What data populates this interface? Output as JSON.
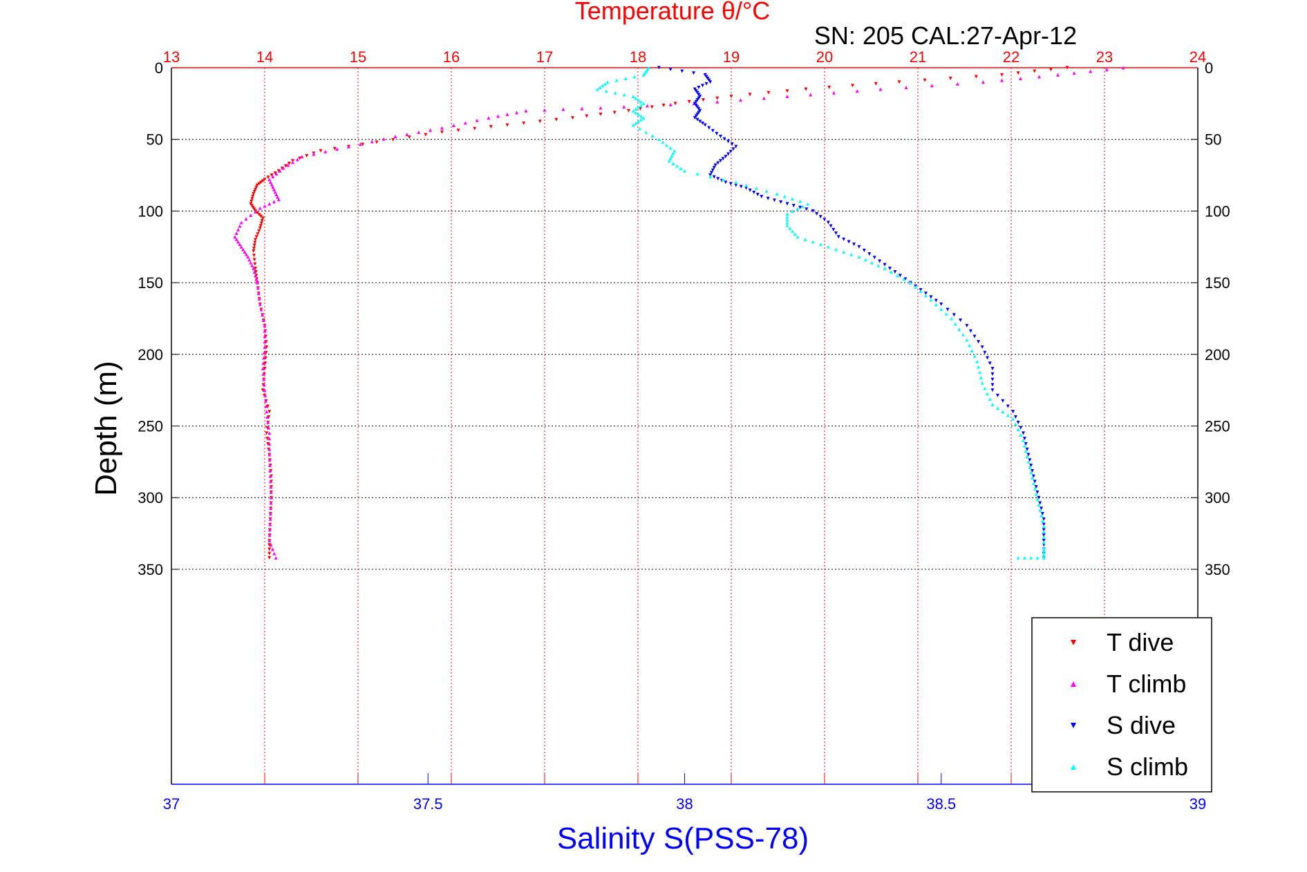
{
  "chart_data": {
    "type": "scatter",
    "title": "Temperature θ/°C",
    "annotation": "SN: 205  CAL:27-Apr-12",
    "ylabel": "Depth (m)",
    "xlabel": "Salinity S(PSS-78)",
    "grid": true,
    "legend_position": "bottom-right",
    "y_axis": {
      "lim": [
        0,
        500
      ],
      "reversed": true,
      "ticks": [
        0,
        50,
        100,
        150,
        200,
        250,
        300,
        350
      ],
      "tick_labels": [
        "0",
        "50",
        "100",
        "150",
        "200",
        "250",
        "300",
        "350"
      ]
    },
    "x_axis_top": {
      "label": "Temperature θ/°C",
      "lim": [
        13,
        24
      ],
      "ticks": [
        13,
        14,
        15,
        16,
        17,
        18,
        19,
        20,
        21,
        22,
        23,
        24
      ],
      "tick_labels": [
        "13",
        "14",
        "15",
        "16",
        "17",
        "18",
        "19",
        "20",
        "21",
        "22",
        "23",
        "24"
      ],
      "color": "#ff0000"
    },
    "x_axis_bottom": {
      "label": "Salinity S(PSS-78)",
      "lim": [
        37,
        39
      ],
      "ticks": [
        37,
        37.5,
        38,
        38.5,
        39
      ],
      "tick_labels": [
        "37",
        "37.5",
        "38",
        "38.5",
        "39"
      ],
      "color": "#0000ff"
    },
    "series": [
      {
        "name": "T dive",
        "axis": "temperature",
        "color": "#ff0000",
        "marker": "triangle-down",
        "points": [
          [
            22.6,
            0
          ],
          [
            21.9,
            5
          ],
          [
            20.8,
            10
          ],
          [
            19.8,
            15
          ],
          [
            19.0,
            20
          ],
          [
            18.4,
            25
          ],
          [
            17.9,
            30
          ],
          [
            17.3,
            35
          ],
          [
            16.6,
            40
          ],
          [
            15.9,
            45
          ],
          [
            15.2,
            52
          ],
          [
            14.6,
            58
          ],
          [
            14.3,
            65
          ],
          [
            14.15,
            72
          ],
          [
            14.0,
            78
          ],
          [
            13.92,
            82
          ],
          [
            13.88,
            88
          ],
          [
            13.85,
            95
          ],
          [
            13.9,
            100
          ],
          [
            13.98,
            105
          ],
          [
            13.95,
            112
          ],
          [
            13.9,
            120
          ],
          [
            13.88,
            128
          ],
          [
            13.9,
            140
          ],
          [
            13.92,
            150
          ],
          [
            13.95,
            165
          ],
          [
            14.0,
            180
          ],
          [
            14.02,
            195
          ],
          [
            14.0,
            210
          ],
          [
            13.98,
            225
          ],
          [
            14.05,
            240
          ],
          [
            14.02,
            255
          ],
          [
            14.05,
            270
          ],
          [
            14.07,
            285
          ],
          [
            14.07,
            300
          ],
          [
            14.06,
            315
          ],
          [
            14.05,
            330
          ],
          [
            14.05,
            342
          ]
        ]
      },
      {
        "name": "T climb",
        "axis": "temperature",
        "color": "#ff00ff",
        "marker": "triangle-up",
        "points": [
          [
            23.2,
            0
          ],
          [
            22.5,
            5
          ],
          [
            21.7,
            10
          ],
          [
            20.6,
            15
          ],
          [
            19.6,
            20
          ],
          [
            18.6,
            25
          ],
          [
            17.6,
            28
          ],
          [
            16.8,
            30
          ],
          [
            16.4,
            35
          ],
          [
            15.9,
            42
          ],
          [
            15.4,
            48
          ],
          [
            14.9,
            55
          ],
          [
            14.4,
            62
          ],
          [
            14.2,
            70
          ],
          [
            14.05,
            78
          ],
          [
            14.1,
            85
          ],
          [
            14.15,
            92
          ],
          [
            13.95,
            98
          ],
          [
            13.75,
            108
          ],
          [
            13.68,
            118
          ],
          [
            13.75,
            125
          ],
          [
            13.82,
            132
          ],
          [
            13.88,
            140
          ],
          [
            13.92,
            150
          ],
          [
            13.95,
            165
          ],
          [
            14.0,
            180
          ],
          [
            14.0,
            195
          ],
          [
            13.98,
            210
          ],
          [
            14.0,
            225
          ],
          [
            14.02,
            240
          ],
          [
            14.05,
            255
          ],
          [
            14.05,
            270
          ],
          [
            14.06,
            285
          ],
          [
            14.07,
            300
          ],
          [
            14.06,
            315
          ],
          [
            14.05,
            330
          ],
          [
            14.12,
            342
          ]
        ]
      },
      {
        "name": "S dive",
        "axis": "salinity",
        "color": "#0000ff",
        "marker": "triangle-down",
        "points": [
          [
            37.95,
            0
          ],
          [
            38.04,
            5
          ],
          [
            38.05,
            10
          ],
          [
            38.02,
            15
          ],
          [
            38.03,
            20
          ],
          [
            38.02,
            25
          ],
          [
            38.03,
            30
          ],
          [
            38.02,
            35
          ],
          [
            38.04,
            40
          ],
          [
            38.07,
            48
          ],
          [
            38.1,
            55
          ],
          [
            38.08,
            62
          ],
          [
            38.06,
            68
          ],
          [
            38.05,
            75
          ],
          [
            38.08,
            80
          ],
          [
            38.12,
            84
          ],
          [
            38.15,
            90
          ],
          [
            38.2,
            95
          ],
          [
            38.25,
            100
          ],
          [
            38.28,
            108
          ],
          [
            38.3,
            118
          ],
          [
            38.34,
            125
          ],
          [
            38.38,
            135
          ],
          [
            38.42,
            145
          ],
          [
            38.46,
            155
          ],
          [
            38.5,
            165
          ],
          [
            38.55,
            180
          ],
          [
            38.58,
            195
          ],
          [
            38.6,
            210
          ],
          [
            38.6,
            225
          ],
          [
            38.64,
            240
          ],
          [
            38.66,
            255
          ],
          [
            38.67,
            270
          ],
          [
            38.68,
            285
          ],
          [
            38.69,
            300
          ],
          [
            38.7,
            315
          ],
          [
            38.7,
            330
          ],
          [
            38.7,
            342
          ]
        ]
      },
      {
        "name": "S climb",
        "axis": "salinity",
        "color": "#00ffff",
        "marker": "triangle-up",
        "points": [
          [
            37.93,
            0
          ],
          [
            37.92,
            5
          ],
          [
            37.85,
            10
          ],
          [
            37.83,
            15
          ],
          [
            37.9,
            20
          ],
          [
            37.92,
            25
          ],
          [
            37.9,
            30
          ],
          [
            37.92,
            35
          ],
          [
            37.9,
            40
          ],
          [
            37.95,
            50
          ],
          [
            37.98,
            58
          ],
          [
            37.97,
            65
          ],
          [
            38.0,
            72
          ],
          [
            38.1,
            80
          ],
          [
            38.18,
            88
          ],
          [
            38.24,
            95
          ],
          [
            38.2,
            102
          ],
          [
            38.2,
            110
          ],
          [
            38.22,
            118
          ],
          [
            38.28,
            125
          ],
          [
            38.34,
            132
          ],
          [
            38.39,
            140
          ],
          [
            38.44,
            150
          ],
          [
            38.48,
            162
          ],
          [
            38.52,
            175
          ],
          [
            38.55,
            190
          ],
          [
            38.57,
            205
          ],
          [
            38.58,
            220
          ],
          [
            38.6,
            235
          ],
          [
            38.64,
            245
          ],
          [
            38.66,
            260
          ],
          [
            38.67,
            275
          ],
          [
            38.68,
            290
          ],
          [
            38.69,
            305
          ],
          [
            38.7,
            320
          ],
          [
            38.7,
            335
          ],
          [
            38.7,
            342
          ],
          [
            38.65,
            342
          ]
        ]
      }
    ]
  }
}
